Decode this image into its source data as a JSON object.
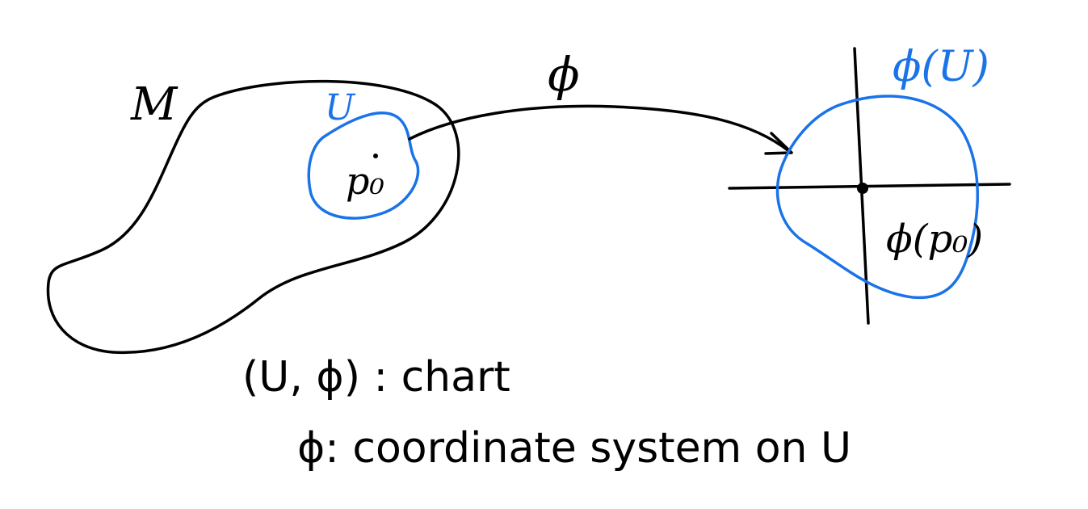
{
  "colors": {
    "ink": "#000000",
    "accent": "#1a73e8"
  },
  "labels": {
    "manifold": "M",
    "open_set": "U",
    "point": "p₀",
    "map": "ϕ",
    "image_set": "ϕ(U)",
    "image_point": "ϕ(p₀)"
  },
  "captions": {
    "line1": "(U, ϕ) : chart",
    "line2": "ϕ: coordinate system on U"
  }
}
